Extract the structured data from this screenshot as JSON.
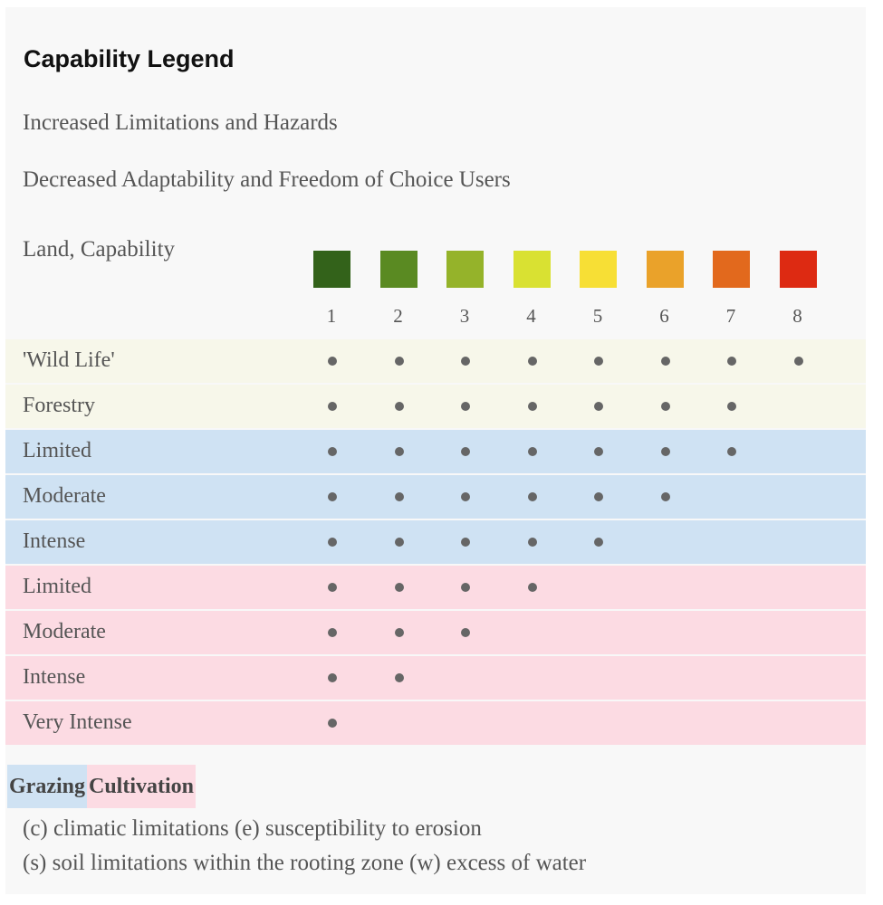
{
  "header": {
    "title": "Capability Legend",
    "lines": [
      "Increased Limitations and Hazards",
      "Decreased Adaptability and Freedom of Choice Users"
    ]
  },
  "table": {
    "corner": "Land, Capability",
    "classes": [
      {
        "label": "1",
        "color": "#33621a"
      },
      {
        "label": "2",
        "color": "#5a8a22"
      },
      {
        "label": "3",
        "color": "#95b32a"
      },
      {
        "label": "4",
        "color": "#d9e132"
      },
      {
        "label": "5",
        "color": "#f7df35"
      },
      {
        "label": "6",
        "color": "#eaa22a"
      },
      {
        "label": "7",
        "color": "#e2691d"
      },
      {
        "label": "8",
        "color": "#dd2a12"
      }
    ],
    "rows": [
      {
        "label": "'Wild Life'",
        "color": "#f7f7ea",
        "dots": [
          true,
          true,
          true,
          true,
          true,
          true,
          true,
          true
        ]
      },
      {
        "label": "Forestry",
        "color": "#f7f7ea",
        "dots": [
          true,
          true,
          true,
          true,
          true,
          true,
          true,
          false
        ]
      },
      {
        "label": "Limited",
        "color": "#cfe2f3",
        "dots": [
          true,
          true,
          true,
          true,
          true,
          true,
          true,
          false
        ]
      },
      {
        "label": "Moderate",
        "color": "#cfe2f3",
        "dots": [
          true,
          true,
          true,
          true,
          true,
          true,
          false,
          false
        ]
      },
      {
        "label": "Intense",
        "color": "#cfe2f3",
        "dots": [
          true,
          true,
          true,
          true,
          true,
          false,
          false,
          false
        ]
      },
      {
        "label": "Limited",
        "color": "#fcdbe3",
        "dots": [
          true,
          true,
          true,
          true,
          false,
          false,
          false,
          false
        ]
      },
      {
        "label": "Moderate",
        "color": "#fcdbe3",
        "dots": [
          true,
          true,
          true,
          false,
          false,
          false,
          false,
          false
        ]
      },
      {
        "label": "Intense",
        "color": "#fcdbe3",
        "dots": [
          true,
          true,
          false,
          false,
          false,
          false,
          false,
          false
        ]
      },
      {
        "label": "Very Intense",
        "color": "#fcdbe3",
        "dots": [
          true,
          false,
          false,
          false,
          false,
          false,
          false,
          false
        ]
      }
    ]
  },
  "legend": [
    {
      "label": "Grazing",
      "color": "#cfe2f3"
    },
    {
      "label": "Cultivation",
      "color": "#fcdbe3"
    }
  ],
  "notes": [
    "(c) climatic limitations (e) susceptibility to erosion",
    "(s) soil limitations within the rooting zone (w) excess of water"
  ]
}
